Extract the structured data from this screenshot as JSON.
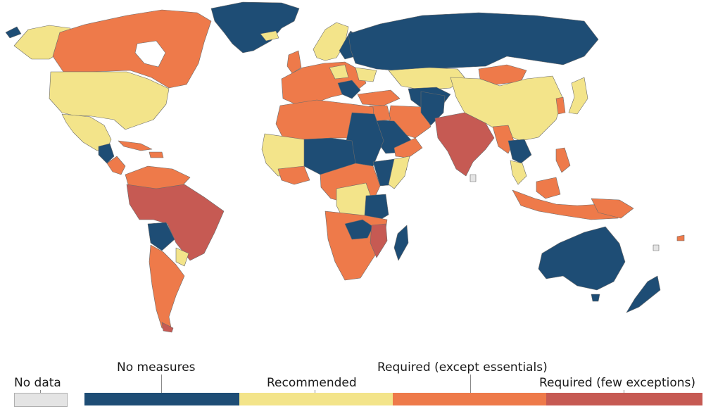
{
  "colors": {
    "no_measures": "#1e4d75",
    "recommended": "#f3e48a",
    "required_except_essentials": "#ee7a4a",
    "required_few_exceptions": "#c65a53",
    "no_data": "#e4e4e4"
  },
  "legend": {
    "no_data": "No data",
    "categories": [
      {
        "label": "No measures",
        "key": "no_measures"
      },
      {
        "label": "Recommended",
        "key": "recommended"
      },
      {
        "label": "Required (except essentials)",
        "key": "required_except_essentials"
      },
      {
        "label": "Required (few exceptions)",
        "key": "required_few_exceptions"
      }
    ]
  }
}
